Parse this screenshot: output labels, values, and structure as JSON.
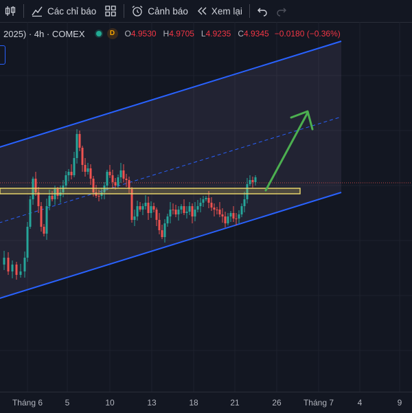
{
  "toolbar": {
    "indicators_label": "Các chỉ báo",
    "alerts_label": "Cảnh báo",
    "replay_label": "Xem lại"
  },
  "legend": {
    "symbol": "2025) · 4h · COMEX",
    "badge": "D",
    "open_key": "O",
    "open": "4.9530",
    "high_key": "H",
    "high": "4.9705",
    "low_key": "L",
    "low": "4.9235",
    "close_key": "C",
    "close": "4.9345",
    "change": "−0.0180 (−0.36%)"
  },
  "colors": {
    "background": "#131722",
    "up": "#26a69a",
    "down": "#ef5350",
    "channel": "#2962ff",
    "level": "#e6d36a",
    "arrow": "#4caf50"
  },
  "xaxis": {
    "ticks": [
      "Tháng 6",
      "5",
      "10",
      "13",
      "18",
      "21",
      "26",
      "Tháng 7",
      "4",
      "9"
    ]
  }
}
